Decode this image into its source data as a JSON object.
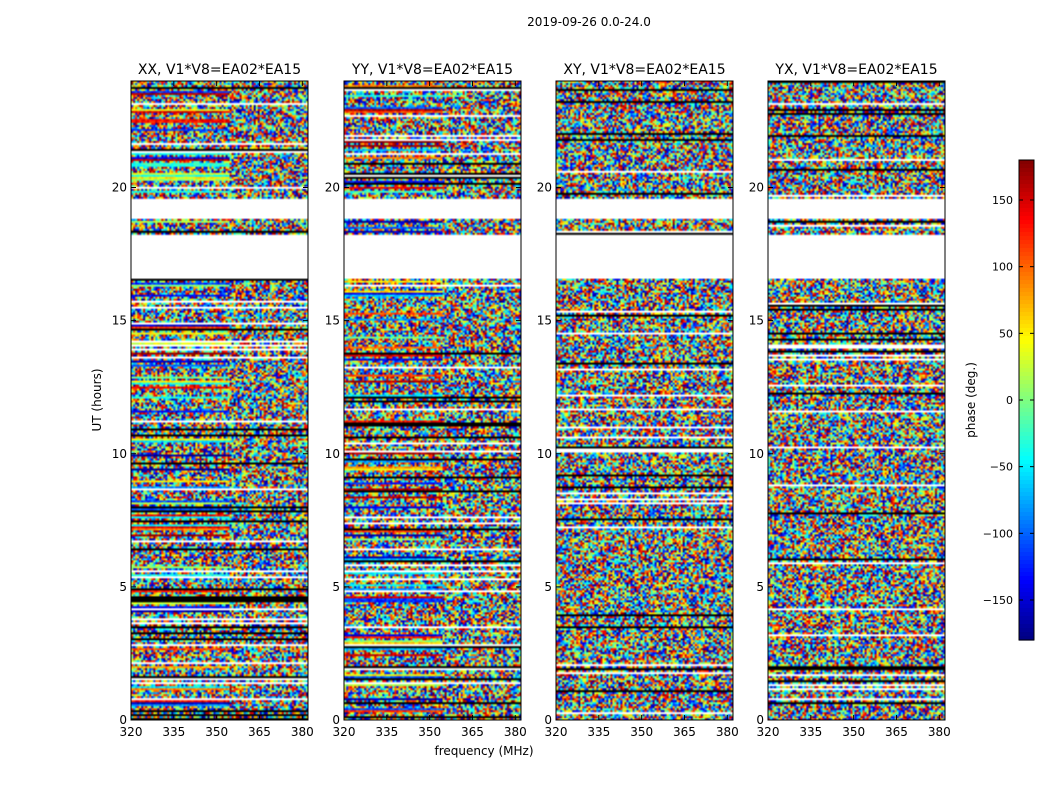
{
  "figure": {
    "suptitle": "2019-09-26 0.0-24.0"
  },
  "chart_data": {
    "type": "heatmap",
    "suptitle": "2019-09-26 0.0-24.0",
    "xlabel": "frequency (MHz)",
    "ylabel": "UT (hours)",
    "xlim": [
      320,
      382
    ],
    "ylim": [
      0,
      24
    ],
    "xticks": [
      320,
      335,
      350,
      365,
      380
    ],
    "yticks": [
      0,
      5,
      10,
      15,
      20
    ],
    "panels": [
      {
        "title": "XX, V1*V8=EA02*EA15",
        "polarization": "XX"
      },
      {
        "title": "YY, V1*V8=EA02*EA15",
        "polarization": "YY"
      },
      {
        "title": "XY, V1*V8=EA02*EA15",
        "polarization": "XY"
      },
      {
        "title": "YX, V1*V8=EA02*EA15",
        "polarization": "YX"
      }
    ],
    "empty_ut_ranges": [
      [
        16.6,
        18.2
      ],
      [
        18.8,
        19.6
      ]
    ],
    "colorbar": {
      "label": "phase (deg.)",
      "range": [
        -180,
        180
      ],
      "ticks": [
        150,
        100,
        50,
        0,
        -50,
        -100,
        -150
      ],
      "colormap": "jet"
    },
    "grid": false,
    "legend": "none"
  }
}
